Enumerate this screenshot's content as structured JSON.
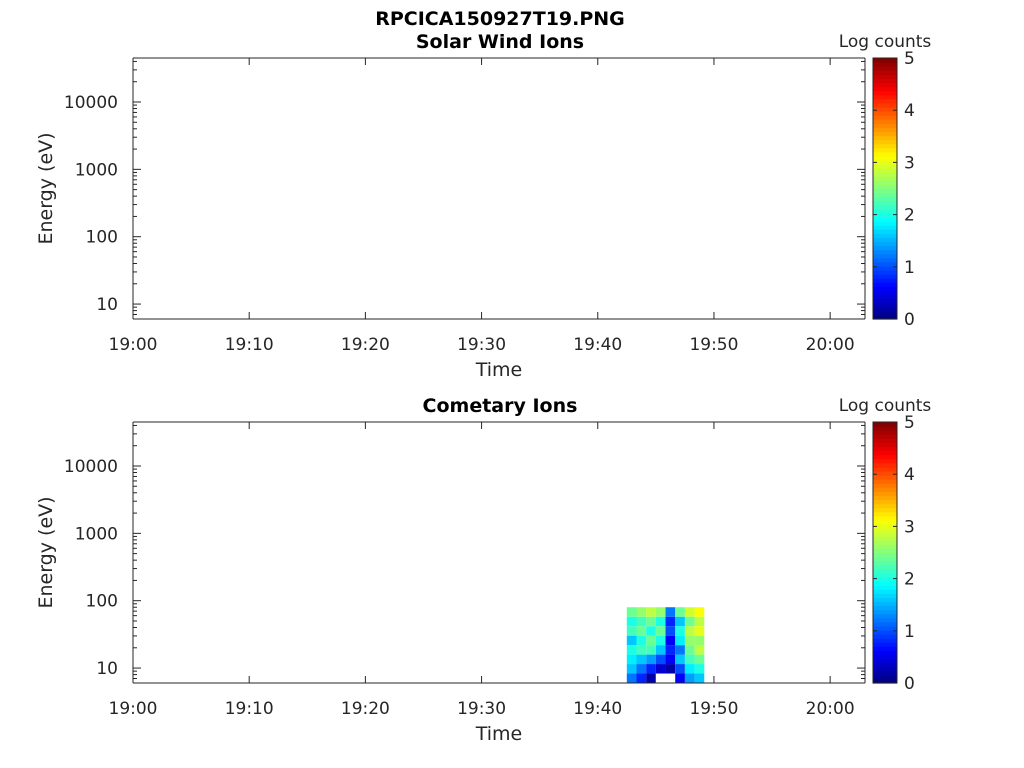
{
  "figure_title": "RPCICA150927T19.PNG",
  "chart_data": [
    {
      "type": "heatmap",
      "title": "Solar Wind Ions",
      "xlabel": "Time",
      "ylabel": "Energy (eV)",
      "x_ticks": [
        "19:00",
        "19:10",
        "19:20",
        "19:30",
        "19:40",
        "19:50",
        "20:00"
      ],
      "xlim": [
        "19:00",
        "20:03"
      ],
      "y_scale": "log",
      "y_ticks": [
        "10",
        "100",
        "1000",
        "10000"
      ],
      "ylim": [
        6,
        45000
      ],
      "colorbar": {
        "label": "Log counts",
        "ticks": [
          "0",
          "1",
          "2",
          "3",
          "4",
          "5"
        ],
        "range": [
          0,
          5
        ],
        "colormap": "jet"
      },
      "data": []
    },
    {
      "type": "heatmap",
      "title": "Cometary Ions",
      "xlabel": "Time",
      "ylabel": "Energy (eV)",
      "x_ticks": [
        "19:00",
        "19:10",
        "19:20",
        "19:30",
        "19:40",
        "19:50",
        "20:00"
      ],
      "xlim": [
        "19:00",
        "20:03"
      ],
      "y_scale": "log",
      "y_ticks": [
        "10",
        "100",
        "1000",
        "10000"
      ],
      "ylim": [
        6,
        45000
      ],
      "colorbar": {
        "label": "Log counts",
        "ticks": [
          "0",
          "1",
          "2",
          "3",
          "4",
          "5"
        ],
        "range": [
          0,
          5
        ],
        "colormap": "jet"
      },
      "data": [
        {
          "time": "19:42:30",
          "energy_range": [
            6,
            80
          ],
          "log_counts": [
            1.2,
            1.6,
            1.8,
            2.0,
            1.6,
            2.2,
            2.0,
            2.4
          ]
        },
        {
          "time": "19:43:20",
          "energy_range": [
            6,
            80
          ],
          "log_counts": [
            0.8,
            1.2,
            1.6,
            2.2,
            2.0,
            2.4,
            2.2,
            2.6
          ]
        },
        {
          "time": "19:44:10",
          "energy_range": [
            6,
            80
          ],
          "log_counts": [
            0.2,
            0.8,
            1.4,
            2.2,
            2.4,
            2.0,
            2.4,
            2.8
          ]
        },
        {
          "time": "19:45:00",
          "energy_range": [
            6,
            80
          ],
          "log_counts": [
            0.0,
            0.4,
            1.0,
            1.6,
            2.0,
            2.4,
            2.0,
            2.6
          ]
        },
        {
          "time": "19:45:50",
          "energy_range": [
            6,
            80
          ],
          "log_counts": [
            0.0,
            0.2,
            0.6,
            0.8,
            0.6,
            1.0,
            0.8,
            1.2
          ]
        },
        {
          "time": "19:46:40",
          "energy_range": [
            6,
            80
          ],
          "log_counts": [
            0.6,
            1.0,
            1.6,
            1.2,
            1.8,
            2.0,
            1.6,
            2.4
          ]
        },
        {
          "time": "19:47:30",
          "energy_range": [
            6,
            80
          ],
          "log_counts": [
            1.4,
            1.8,
            2.2,
            2.4,
            2.6,
            2.8,
            2.4,
            2.9
          ]
        },
        {
          "time": "19:48:20",
          "energy_range": [
            6,
            80
          ],
          "log_counts": [
            1.6,
            2.0,
            2.4,
            2.8,
            2.6,
            3.0,
            2.8,
            3.1
          ]
        }
      ]
    }
  ]
}
